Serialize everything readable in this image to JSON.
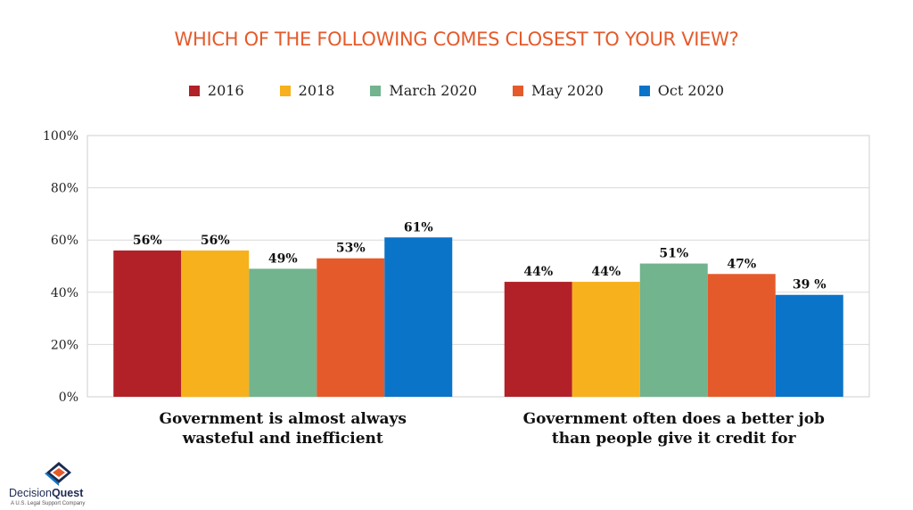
{
  "chart_data": {
    "type": "bar",
    "title": "WHICH OF THE FOLLOWING COMES CLOSEST TO YOUR VIEW?",
    "categories": [
      [
        "Government is almost always",
        "wasteful and inefficient"
      ],
      [
        "Government often does a better job",
        "than people give it credit for"
      ]
    ],
    "series": [
      {
        "name": "2016",
        "color": "#B22028",
        "values": [
          56,
          44
        ],
        "labels": [
          "56%",
          "44%"
        ]
      },
      {
        "name": "2018",
        "color": "#F7B11C",
        "values": [
          56,
          44
        ],
        "labels": [
          "56%",
          "44%"
        ]
      },
      {
        "name": "March 2020",
        "color": "#71B48E",
        "values": [
          49,
          51
        ],
        "labels": [
          "49%",
          "51%"
        ]
      },
      {
        "name": "May 2020",
        "color": "#E55A2B",
        "values": [
          53,
          47
        ],
        "labels": [
          "53%",
          "47%"
        ]
      },
      {
        "name": "Oct 2020",
        "color": "#0A74C8",
        "values": [
          61,
          39
        ],
        "labels": [
          "61%",
          "39 %"
        ]
      }
    ],
    "ylim": [
      0,
      100
    ],
    "yticks": [
      "0%",
      "20%",
      "40%",
      "60%",
      "80%",
      "100%"
    ],
    "grid": true,
    "legend_position": "top-center"
  },
  "logo": {
    "icon": "decisionquest-logo-icon",
    "name_part1": "Decision",
    "name_part2": "Quest",
    "tagline": "A U.S. Legal Support Company"
  }
}
